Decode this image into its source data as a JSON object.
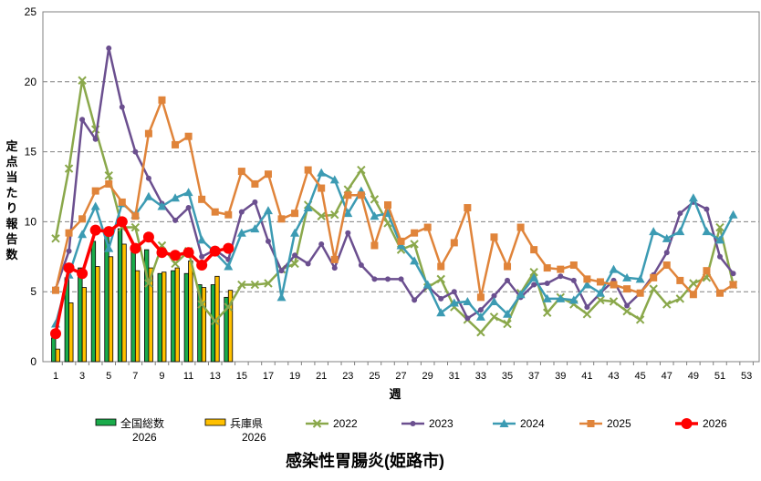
{
  "chart_data": {
    "type": "bar+line",
    "title": "感染性胃腸炎(姫路市)",
    "xlabel": "週",
    "ylabel": "定点当たり報告数",
    "ylim": [
      0,
      25
    ],
    "yticks": [
      0,
      5,
      10,
      15,
      20,
      25
    ],
    "xticks": [
      1,
      3,
      5,
      7,
      9,
      11,
      13,
      15,
      17,
      19,
      21,
      23,
      25,
      27,
      29,
      31,
      33,
      35,
      37,
      39,
      41,
      43,
      45,
      47,
      49,
      51,
      53
    ],
    "grid": "horizontal dashed",
    "legend": "bottom",
    "bars": [
      {
        "name": "全国総数\n2026",
        "label1": "全国総数",
        "label2": "2026",
        "color": "#1aab4b",
        "values": [
          1.7,
          6.0,
          6.7,
          8.6,
          9.1,
          9.5,
          8.0,
          8.0,
          6.3,
          6.5,
          6.3,
          5.5,
          5.5,
          4.6
        ]
      },
      {
        "name": "兵庫県\n2026",
        "label1": "兵庫県",
        "label2": "2026",
        "color": "#ffc000",
        "values": [
          0.9,
          4.2,
          5.3,
          6.8,
          7.5,
          8.4,
          6.5,
          6.7,
          6.4,
          6.7,
          7.2,
          5.3,
          6.1,
          5.1
        ]
      }
    ],
    "series": [
      {
        "name": "2022",
        "color": "#8aa84b",
        "marker": "x",
        "values": [
          8.8,
          13.8,
          20.1,
          16.6,
          13.3,
          9.6,
          9.6,
          5.6,
          8.3,
          7.0,
          7.9,
          4.1,
          2.9,
          3.9,
          5.5,
          5.5,
          5.6,
          6.6,
          7.0,
          11.2,
          10.4,
          10.5,
          12.3,
          13.7,
          11.6,
          9.9,
          8.0,
          8.4,
          5.3,
          5.9,
          3.9,
          3.0,
          2.1,
          3.2,
          2.7,
          4.9,
          6.4,
          3.5,
          4.6,
          4.1,
          3.4,
          4.4,
          4.3,
          3.6,
          3.0,
          5.2,
          4.1,
          4.5,
          5.6,
          6.0,
          9.6,
          5.5
        ]
      },
      {
        "name": "2023",
        "color": "#6b4f8f",
        "marker": "circle",
        "values": [
          5.2,
          7.9,
          17.3,
          15.9,
          22.4,
          18.2,
          15.0,
          13.1,
          11.3,
          10.1,
          11.0,
          7.5,
          8.0,
          7.3,
          10.7,
          11.4,
          8.6,
          6.5,
          7.6,
          7.0,
          8.4,
          6.7,
          9.2,
          6.9,
          5.9,
          5.9,
          5.9,
          4.4,
          5.4,
          4.5,
          5.0,
          3.1,
          3.7,
          4.7,
          5.8,
          4.6,
          5.5,
          5.6,
          6.1,
          5.8,
          3.9,
          4.9,
          5.8,
          4.0,
          4.9,
          6.2,
          7.8,
          10.6,
          11.4,
          10.9,
          7.5,
          6.3
        ]
      },
      {
        "name": "2024",
        "color": "#3c9bb3",
        "marker": "triangle",
        "values": [
          2.7,
          6.2,
          9.1,
          11.1,
          8.1,
          11.3,
          10.5,
          11.8,
          11.1,
          11.7,
          12.1,
          8.7,
          7.8,
          6.8,
          9.2,
          9.5,
          10.8,
          4.6,
          9.2,
          11.0,
          13.5,
          13.0,
          10.6,
          12.2,
          10.4,
          10.6,
          8.3,
          7.2,
          5.5,
          3.5,
          4.2,
          4.3,
          3.2,
          4.3,
          3.4,
          4.8,
          6.0,
          4.5,
          4.5,
          4.4,
          5.5,
          4.9,
          6.6,
          6.0,
          5.9,
          9.3,
          8.8,
          9.3,
          11.7,
          9.3,
          8.7,
          10.5
        ]
      },
      {
        "name": "2025",
        "color": "#e0843a",
        "marker": "square",
        "values": [
          5.1,
          9.2,
          10.2,
          12.2,
          12.7,
          11.4,
          10.4,
          16.3,
          18.7,
          15.5,
          16.1,
          11.6,
          10.7,
          10.5,
          13.6,
          12.7,
          13.4,
          10.2,
          10.6,
          13.7,
          12.4,
          7.3,
          11.9,
          11.9,
          8.3,
          11.2,
          8.6,
          9.2,
          9.6,
          6.8,
          8.5,
          11.0,
          4.6,
          8.9,
          6.8,
          9.6,
          8.0,
          6.7,
          6.6,
          6.9,
          5.9,
          5.7,
          5.5,
          5.2,
          4.9,
          6.0,
          6.9,
          5.8,
          4.8,
          6.5,
          4.9,
          5.5
        ]
      },
      {
        "name": "2026",
        "color": "#ff0000",
        "marker": "bigcircle",
        "values": [
          2.0,
          6.7,
          6.3,
          9.4,
          9.3,
          10.0,
          8.1,
          8.9,
          7.8,
          7.6,
          7.8,
          6.9,
          7.9,
          8.1
        ]
      }
    ]
  }
}
